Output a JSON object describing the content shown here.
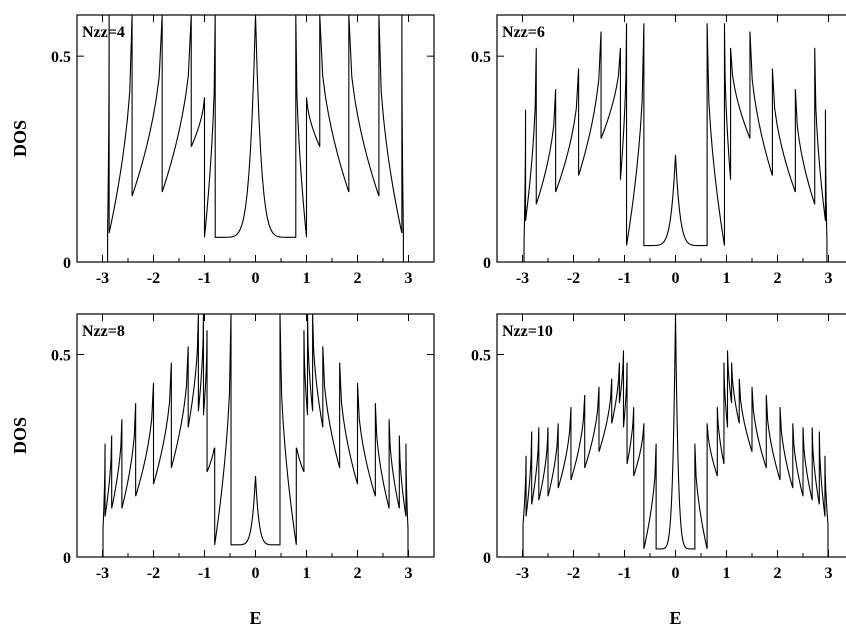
{
  "chart_data": [
    {
      "type": "line",
      "label": "Nzz=4",
      "ylabel": "DOS",
      "xlabel": "",
      "xlim": [
        -3.5,
        3.5
      ],
      "ylim": [
        0,
        0.6
      ],
      "xticks": [
        "-3",
        "-2",
        "-1",
        "0",
        "1",
        "2",
        "3"
      ],
      "yticks": [
        "0",
        "0.5"
      ],
      "edge": 2.9,
      "singularities": [
        {
          "x": 0.0,
          "peak": 0.6,
          "floor": 0.06
        },
        {
          "x": 0.79,
          "peak": 0.6,
          "floor": 0.06
        },
        {
          "x": 1.0,
          "peak": 0.4,
          "floor": 0.28
        },
        {
          "x": 1.26,
          "peak": 0.6,
          "floor": 0.17
        },
        {
          "x": 1.83,
          "peak": 0.6,
          "floor": 0.16
        },
        {
          "x": 2.42,
          "peak": 0.6,
          "floor": 0.07
        },
        {
          "x": 2.87,
          "peak": 0.6,
          "floor": 0.07
        }
      ]
    },
    {
      "type": "line",
      "label": "Nzz=6",
      "ylabel": "",
      "xlabel": "",
      "xlim": [
        -3.5,
        3.5
      ],
      "ylim": [
        0,
        0.6
      ],
      "xticks": [
        "-3",
        "-2",
        "-1",
        "0",
        "1",
        "2",
        "3"
      ],
      "yticks": [
        "0",
        "0.5"
      ],
      "edge": 2.97,
      "singularities": [
        {
          "x": 0.0,
          "peak": 0.26,
          "floor": 0.04
        },
        {
          "x": 0.62,
          "peak": 0.58,
          "floor": 0.04
        },
        {
          "x": 0.96,
          "peak": 0.58,
          "floor": 0.2
        },
        {
          "x": 1.08,
          "peak": 0.52,
          "floor": 0.3
        },
        {
          "x": 1.46,
          "peak": 0.56,
          "floor": 0.21
        },
        {
          "x": 1.9,
          "peak": 0.47,
          "floor": 0.17
        },
        {
          "x": 2.35,
          "peak": 0.42,
          "floor": 0.14
        },
        {
          "x": 2.73,
          "peak": 0.52,
          "floor": 0.1
        },
        {
          "x": 2.94,
          "peak": 0.37,
          "floor": 0.05
        }
      ]
    },
    {
      "type": "line",
      "label": "Nzz=8",
      "ylabel": "DOS",
      "xlabel": "E",
      "xlim": [
        -3.5,
        3.5
      ],
      "ylim": [
        0,
        0.6
      ],
      "xticks": [
        "-3",
        "-2",
        "-1",
        "0",
        "1",
        "2",
        "3"
      ],
      "yticks": [
        "0",
        "0.5"
      ],
      "edge": 2.99,
      "singularities": [
        {
          "x": 0.0,
          "peak": 0.2,
          "floor": 0.03
        },
        {
          "x": 0.48,
          "peak": 0.6,
          "floor": 0.03
        },
        {
          "x": 0.8,
          "peak": 0.27,
          "floor": 0.21
        },
        {
          "x": 0.95,
          "peak": 0.56,
          "floor": 0.35
        },
        {
          "x": 1.02,
          "peak": 0.6,
          "floor": 0.36
        },
        {
          "x": 1.12,
          "peak": 0.6,
          "floor": 0.32
        },
        {
          "x": 1.32,
          "peak": 0.52,
          "floor": 0.22
        },
        {
          "x": 1.65,
          "peak": 0.48,
          "floor": 0.18
        },
        {
          "x": 2.0,
          "peak": 0.43,
          "floor": 0.15
        },
        {
          "x": 2.35,
          "peak": 0.38,
          "floor": 0.12
        },
        {
          "x": 2.62,
          "peak": 0.34,
          "floor": 0.12
        },
        {
          "x": 2.82,
          "peak": 0.3,
          "floor": 0.1
        },
        {
          "x": 2.95,
          "peak": 0.28,
          "floor": 0.07
        }
      ]
    },
    {
      "type": "line",
      "label": "Nzz=10",
      "ylabel": "",
      "xlabel": "E",
      "xlim": [
        -3.5,
        3.5
      ],
      "ylim": [
        0,
        0.6
      ],
      "xticks": [
        "-3",
        "-2",
        "-1",
        "0",
        "1",
        "2",
        "3"
      ],
      "yticks": [
        "0",
        "0.5"
      ],
      "edge": 2.99,
      "singularities": [
        {
          "x": 0.0,
          "peak": 0.6,
          "floor": 0.02
        },
        {
          "x": 0.38,
          "peak": 0.28,
          "floor": 0.02
        },
        {
          "x": 0.62,
          "peak": 0.33,
          "floor": 0.2
        },
        {
          "x": 0.82,
          "peak": 0.37,
          "floor": 0.23
        },
        {
          "x": 0.95,
          "peak": 0.48,
          "floor": 0.32
        },
        {
          "x": 1.02,
          "peak": 0.51,
          "floor": 0.38
        },
        {
          "x": 1.1,
          "peak": 0.48,
          "floor": 0.33
        },
        {
          "x": 1.25,
          "peak": 0.44,
          "floor": 0.26
        },
        {
          "x": 1.5,
          "peak": 0.42,
          "floor": 0.22
        },
        {
          "x": 1.78,
          "peak": 0.4,
          "floor": 0.19
        },
        {
          "x": 2.05,
          "peak": 0.37,
          "floor": 0.17
        },
        {
          "x": 2.3,
          "peak": 0.33,
          "floor": 0.15
        },
        {
          "x": 2.5,
          "peak": 0.32,
          "floor": 0.14
        },
        {
          "x": 2.68,
          "peak": 0.32,
          "floor": 0.13
        },
        {
          "x": 2.82,
          "peak": 0.31,
          "floor": 0.1
        },
        {
          "x": 2.93,
          "peak": 0.25,
          "floor": 0.08
        }
      ]
    }
  ]
}
